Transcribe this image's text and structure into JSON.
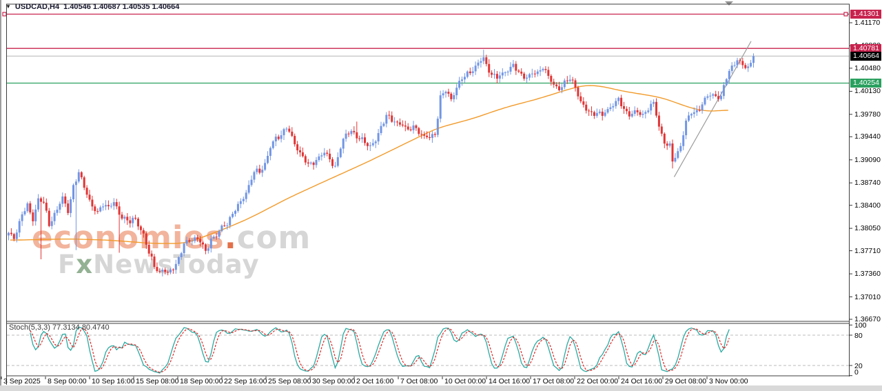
{
  "title": {
    "symbol_period": "USDCAD,H4",
    "ohlc_text": "1.40546 1.40687 1.40535 1.40664"
  },
  "icons": {
    "symbol_dropdown": "▼",
    "shift_marker": "triangle-down"
  },
  "watermark": {
    "brand": "economies",
    "dot": ".",
    "tld": "com",
    "line2_f": "F",
    "line2_x": "x",
    "line2_rest": "NewsToday"
  },
  "colors": {
    "crimson": "#c8234e",
    "green": "#2aa05f",
    "black": "#000000",
    "up": "#7296e4",
    "down": "#e13535",
    "ma": "#f29a29",
    "stoch_main": "#2aaaa2",
    "stoch_signal": "#e02525",
    "current_line": "#c4c4c4",
    "trendline": "#9a9a9a",
    "frame": "#3c3c3c",
    "dashed_level": "#bbbbbb",
    "wm_peach": "#f2b49c",
    "wm_gray": "#d6d6d6",
    "wm_green": "#93b193",
    "wm_dot": "#e2714a"
  },
  "stoch_panel": {
    "label": "Stoch(5,3,3)",
    "k_value": "77.3134",
    "d_value": "80.4740"
  },
  "chart_data": {
    "type": "candlestick",
    "symbol": "USDCAD",
    "timeframe": "H4",
    "ohlc_display": {
      "open": 1.40546,
      "high": 1.40687,
      "low": 1.40535,
      "close": 1.40664
    },
    "bar_count": 277,
    "y_axis": {
      "tick_labels": [
        "1.41170",
        "1.40820",
        "1.40480",
        "1.40130",
        "1.39780",
        "1.39440",
        "1.39090",
        "1.38740",
        "1.38400",
        "1.38050",
        "1.37710",
        "1.37360",
        "1.37010",
        "1.36670"
      ],
      "range_top": 1.4117,
      "range_bottom": 1.3667,
      "grid": false
    },
    "x_axis": {
      "labels": [
        "3 Sep 2025",
        "8 Sep 00:00",
        "10 Sep 16:00",
        "15 Sep 08:00",
        "18 Sep 00:00",
        "22 Sep 16:00",
        "25 Sep 08:00",
        "30 Sep 00:00",
        "2 Oct 16:00",
        "7 Oct 08:00",
        "10 Oct 00:00",
        "14 Oct 16:00",
        "17 Oct 08:00",
        "22 Oct 00:00",
        "24 Oct 16:00",
        "29 Oct 08:00",
        "3 Nov 00:00"
      ]
    },
    "price_path_anchors": [
      [
        0,
        1.3796
      ],
      [
        2,
        1.379
      ],
      [
        5,
        1.3827
      ],
      [
        7,
        1.3838
      ],
      [
        9,
        1.3819
      ],
      [
        11,
        1.385
      ],
      [
        13,
        1.3843
      ],
      [
        15,
        1.3811
      ],
      [
        17,
        1.3827
      ],
      [
        20,
        1.385
      ],
      [
        22,
        1.3832
      ],
      [
        24,
        1.3869
      ],
      [
        26,
        1.3888
      ],
      [
        28,
        1.3869
      ],
      [
        31,
        1.3838
      ],
      [
        33,
        1.3827
      ],
      [
        35,
        1.3843
      ],
      [
        37,
        1.3838
      ],
      [
        39,
        1.3843
      ],
      [
        41,
        1.3827
      ],
      [
        43,
        1.3821
      ],
      [
        45,
        1.3814
      ],
      [
        47,
        1.3819
      ],
      [
        50,
        1.3796
      ],
      [
        52,
        1.3766
      ],
      [
        54,
        1.3749
      ],
      [
        56,
        1.3738
      ],
      [
        57,
        1.3743
      ],
      [
        59,
        1.3735
      ],
      [
        61,
        1.3746
      ],
      [
        63,
        1.3759
      ],
      [
        65,
        1.378
      ],
      [
        67,
        1.3787
      ],
      [
        69,
        1.3791
      ],
      [
        71,
        1.3785
      ],
      [
        73,
        1.3769
      ],
      [
        75,
        1.379
      ],
      [
        77,
        1.3793
      ],
      [
        79,
        1.3806
      ],
      [
        81,
        1.3814
      ],
      [
        83,
        1.3827
      ],
      [
        85,
        1.3838
      ],
      [
        87,
        1.3853
      ],
      [
        89,
        1.3869
      ],
      [
        91,
        1.389
      ],
      [
        93,
        1.3892
      ],
      [
        95,
        1.3903
      ],
      [
        97,
        1.3927
      ],
      [
        99,
        1.3942
      ],
      [
        101,
        1.3948
      ],
      [
        103,
        1.3958
      ],
      [
        105,
        1.3942
      ],
      [
        107,
        1.3927
      ],
      [
        109,
        1.3913
      ],
      [
        111,
        1.39
      ],
      [
        113,
        1.3906
      ],
      [
        115,
        1.3913
      ],
      [
        117,
        1.3919
      ],
      [
        119,
        1.3911
      ],
      [
        121,
        1.3898
      ],
      [
        123,
        1.3927
      ],
      [
        125,
        1.3948
      ],
      [
        127,
        1.3955
      ],
      [
        129,
        1.3942
      ],
      [
        132,
        1.3937
      ],
      [
        134,
        1.393
      ],
      [
        136,
        1.3937
      ],
      [
        138,
        1.3958
      ],
      [
        140,
        1.3979
      ],
      [
        142,
        1.3968
      ],
      [
        144,
        1.3963
      ],
      [
        146,
        1.3965
      ],
      [
        148,
        1.3953
      ],
      [
        150,
        1.3958
      ],
      [
        152,
        1.3953
      ],
      [
        154,
        1.3944
      ],
      [
        156,
        1.3942
      ],
      [
        158,
        1.3948
      ],
      [
        160,
        1.4005
      ],
      [
        162,
        1.4013
      ],
      [
        164,
        1.4
      ],
      [
        166,
        1.4021
      ],
      [
        168,
        1.4031
      ],
      [
        170,
        1.4039
      ],
      [
        172,
        1.4047
      ],
      [
        174,
        1.4055
      ],
      [
        176,
        1.4063
      ],
      [
        177,
        1.4052
      ],
      [
        179,
        1.404
      ],
      [
        181,
        1.4033
      ],
      [
        183,
        1.4039
      ],
      [
        185,
        1.4047
      ],
      [
        187,
        1.4052
      ],
      [
        189,
        1.404
      ],
      [
        192,
        1.4035
      ],
      [
        194,
        1.4039
      ],
      [
        196,
        1.404
      ],
      [
        198,
        1.4052
      ],
      [
        200,
        1.4035
      ],
      [
        202,
        1.4021
      ],
      [
        204,
        1.4018
      ],
      [
        206,
        1.4026
      ],
      [
        208,
        1.4031
      ],
      [
        210,
        1.4021
      ],
      [
        212,
        1.3997
      ],
      [
        214,
        1.3984
      ],
      [
        216,
        1.3979
      ],
      [
        218,
        1.3982
      ],
      [
        220,
        1.3976
      ],
      [
        222,
        1.3984
      ],
      [
        224,
        1.3995
      ],
      [
        226,
        1.4
      ],
      [
        228,
        1.3984
      ],
      [
        230,
        1.3979
      ],
      [
        232,
        1.3982
      ],
      [
        235,
        1.3976
      ],
      [
        237,
        1.3989
      ],
      [
        239,
        1.3995
      ],
      [
        241,
        1.3958
      ],
      [
        243,
        1.3937
      ],
      [
        245,
        1.393
      ],
      [
        246,
        1.3906
      ],
      [
        248,
        1.3919
      ],
      [
        249,
        1.3932
      ],
      [
        251,
        1.3968
      ],
      [
        253,
        1.3979
      ],
      [
        255,
        1.3982
      ],
      [
        257,
        1.3995
      ],
      [
        259,
        1.4005
      ],
      [
        261,
        1.4007
      ],
      [
        264,
        1.4005
      ],
      [
        266,
        1.4033
      ],
      [
        268,
        1.4051
      ],
      [
        270,
        1.4062
      ],
      [
        272,
        1.4051
      ],
      [
        274,
        1.4048
      ],
      [
        276,
        1.40664
      ]
    ],
    "wick_overrides": [
      [
        12,
        "L",
        1.3758
      ],
      [
        25,
        "L",
        1.3772
      ],
      [
        41,
        "L",
        1.3768
      ],
      [
        129,
        "H",
        1.3967
      ],
      [
        176,
        "H",
        1.4076
      ],
      [
        246,
        "L",
        1.3896
      ]
    ],
    "ma_anchors": [
      [
        1,
        1.3787
      ],
      [
        23,
        1.3789
      ],
      [
        38,
        1.3787
      ],
      [
        54,
        1.3782
      ],
      [
        66,
        1.3782
      ],
      [
        79,
        1.3802
      ],
      [
        89,
        1.3819
      ],
      [
        105,
        1.3853
      ],
      [
        120,
        1.3881
      ],
      [
        133,
        1.3905
      ],
      [
        146,
        1.3931
      ],
      [
        159,
        1.3957
      ],
      [
        172,
        1.3971
      ],
      [
        184,
        1.3988
      ],
      [
        197,
        1.4002
      ],
      [
        207,
        1.4015
      ],
      [
        214,
        1.4023
      ],
      [
        220,
        1.4021
      ],
      [
        228,
        1.4013
      ],
      [
        236,
        1.4008
      ],
      [
        243,
        1.4003
      ],
      [
        250,
        1.3992
      ],
      [
        256,
        1.3984
      ],
      [
        262,
        1.3982
      ],
      [
        267,
        1.3986
      ]
    ],
    "trendline": {
      "from_bar": 247,
      "from_price": 1.3883,
      "to_bar": 275.5,
      "to_price": 1.4089
    },
    "levels": [
      {
        "price": 1.41301,
        "label": "1.41301",
        "color_key": "crimson",
        "selected": true
      },
      {
        "price": 1.40781,
        "label": "1.40781",
        "color_key": "crimson",
        "selected": false
      },
      {
        "price": 1.40254,
        "label": "1.40254",
        "color_key": "green",
        "selected": false
      }
    ],
    "current_price": {
      "price": 1.40664,
      "label": "1.40664"
    },
    "stochastic": {
      "params": [
        5,
        3,
        3
      ],
      "k": 77.3134,
      "d": 80.474,
      "upper_level": 80,
      "lower_level": 20,
      "scale_labels": [
        100,
        80,
        20,
        0
      ],
      "plot_end_bar": 267
    }
  }
}
